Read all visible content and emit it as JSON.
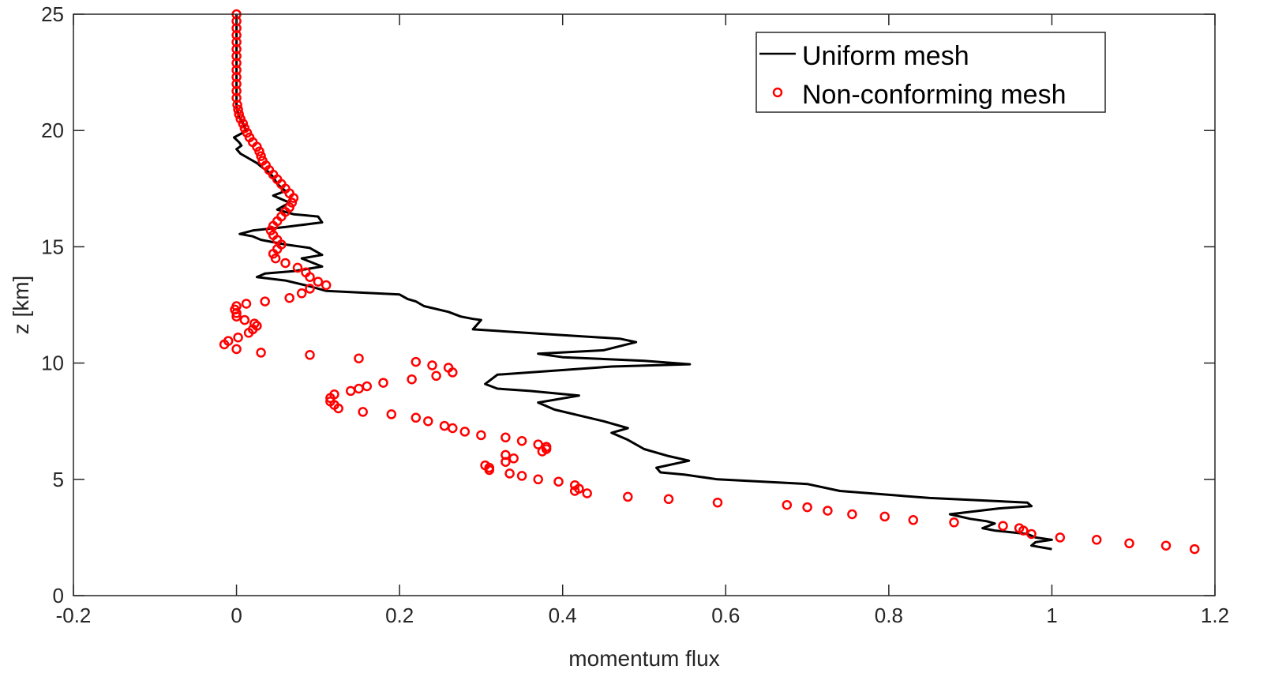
{
  "chart_data": {
    "type": "line",
    "title": "",
    "xlabel": "momentum flux",
    "ylabel": "z [km]",
    "xlim": [
      -0.2,
      1.2
    ],
    "ylim": [
      0,
      25
    ],
    "xticks": [
      -0.2,
      0,
      0.2,
      0.4,
      0.6,
      0.8,
      1,
      1.2
    ],
    "xtick_labels": [
      "-0.2",
      "0",
      "0.2",
      "0.4",
      "0.6",
      "0.8",
      "1",
      "1.2"
    ],
    "yticks": [
      0,
      5,
      10,
      15,
      20,
      25
    ],
    "ytick_labels": [
      "0",
      "5",
      "10",
      "15",
      "20",
      "25"
    ],
    "grid": false,
    "legend_position": "top-right",
    "colors": {
      "uniform": "#000000",
      "nonconforming": "#ff0000",
      "axes": "#262626"
    },
    "series": [
      {
        "name": "Uniform mesh",
        "style": "line",
        "color": "#000000",
        "points": [
          [
            0.0,
            25.0
          ],
          [
            0.0,
            23.0
          ],
          [
            0.0,
            22.0
          ],
          [
            0.0,
            21.0
          ],
          [
            0.003,
            20.6
          ],
          [
            0.008,
            20.3
          ],
          [
            0.012,
            20.0
          ],
          [
            0.005,
            19.85
          ],
          [
            -0.003,
            19.7
          ],
          [
            0.003,
            19.5
          ],
          [
            0.006,
            19.35
          ],
          [
            0.0,
            19.2
          ],
          [
            0.005,
            19.0
          ],
          [
            0.015,
            18.8
          ],
          [
            0.025,
            18.6
          ],
          [
            0.032,
            18.4
          ],
          [
            0.04,
            18.2
          ],
          [
            0.045,
            18.0
          ],
          [
            0.05,
            17.7
          ],
          [
            0.06,
            17.4
          ],
          [
            0.045,
            17.2
          ],
          [
            0.065,
            16.9
          ],
          [
            0.05,
            16.6
          ],
          [
            0.07,
            16.4
          ],
          [
            0.1,
            16.3
          ],
          [
            0.105,
            16.05
          ],
          [
            0.06,
            15.85
          ],
          [
            0.02,
            15.7
          ],
          [
            0.004,
            15.55
          ],
          [
            0.02,
            15.45
          ],
          [
            0.03,
            15.3
          ],
          [
            0.06,
            15.1
          ],
          [
            0.09,
            14.95
          ],
          [
            0.105,
            14.65
          ],
          [
            0.08,
            14.5
          ],
          [
            0.105,
            14.15
          ],
          [
            0.07,
            13.95
          ],
          [
            0.035,
            13.85
          ],
          [
            0.025,
            13.7
          ],
          [
            0.06,
            13.55
          ],
          [
            0.09,
            13.3
          ],
          [
            0.11,
            13.1
          ],
          [
            0.2,
            12.95
          ],
          [
            0.21,
            12.75
          ],
          [
            0.22,
            12.65
          ],
          [
            0.23,
            12.45
          ],
          [
            0.26,
            12.2
          ],
          [
            0.275,
            12.0
          ],
          [
            0.29,
            11.9
          ],
          [
            0.3,
            11.85
          ],
          [
            0.29,
            11.45
          ],
          [
            0.4,
            11.2
          ],
          [
            0.47,
            11.05
          ],
          [
            0.49,
            10.9
          ],
          [
            0.45,
            10.55
          ],
          [
            0.37,
            10.4
          ],
          [
            0.4,
            10.25
          ],
          [
            0.5,
            10.1
          ],
          [
            0.556,
            9.95
          ],
          [
            0.46,
            9.85
          ],
          [
            0.32,
            9.5
          ],
          [
            0.305,
            9.1
          ],
          [
            0.32,
            8.9
          ],
          [
            0.36,
            8.8
          ],
          [
            0.42,
            8.6
          ],
          [
            0.37,
            8.3
          ],
          [
            0.39,
            8.0
          ],
          [
            0.45,
            7.5
          ],
          [
            0.48,
            7.2
          ],
          [
            0.46,
            7.0
          ],
          [
            0.48,
            6.7
          ],
          [
            0.5,
            6.3
          ],
          [
            0.53,
            6.0
          ],
          [
            0.555,
            5.8
          ],
          [
            0.515,
            5.5
          ],
          [
            0.52,
            5.3
          ],
          [
            0.55,
            5.2
          ],
          [
            0.59,
            5.0
          ],
          [
            0.7,
            4.8
          ],
          [
            0.74,
            4.5
          ],
          [
            0.85,
            4.2
          ],
          [
            0.97,
            4.0
          ],
          [
            0.975,
            3.85
          ],
          [
            0.935,
            3.75
          ],
          [
            0.875,
            3.5
          ],
          [
            0.9,
            3.3
          ],
          [
            0.92,
            3.2
          ],
          [
            0.93,
            3.1
          ],
          [
            0.915,
            2.9
          ],
          [
            0.93,
            2.8
          ],
          [
            0.97,
            2.65
          ],
          [
            0.98,
            2.5
          ],
          [
            1.0,
            2.4
          ],
          [
            0.98,
            2.3
          ],
          [
            0.975,
            2.15
          ],
          [
            1.0,
            2.0
          ]
        ]
      },
      {
        "name": "Non-conforming mesh",
        "style": "markers",
        "marker": "circle",
        "color": "#ff0000",
        "points": [
          [
            0.0,
            25.0
          ],
          [
            0.0,
            24.7
          ],
          [
            0.0,
            24.4
          ],
          [
            0.0,
            24.1
          ],
          [
            0.0,
            23.8
          ],
          [
            0.0,
            23.5
          ],
          [
            0.0,
            23.2
          ],
          [
            0.0,
            22.9
          ],
          [
            0.0,
            22.6
          ],
          [
            0.0,
            22.3
          ],
          [
            0.0,
            22.0
          ],
          [
            0.0,
            21.7
          ],
          [
            0.0,
            21.4
          ],
          [
            0.001,
            21.1
          ],
          [
            0.002,
            20.9
          ],
          [
            0.003,
            20.7
          ],
          [
            0.005,
            20.5
          ],
          [
            0.008,
            20.3
          ],
          [
            0.01,
            20.1
          ],
          [
            0.013,
            19.9
          ],
          [
            0.016,
            19.7
          ],
          [
            0.02,
            19.5
          ],
          [
            0.025,
            19.3
          ],
          [
            0.028,
            19.1
          ],
          [
            0.03,
            18.9
          ],
          [
            0.032,
            18.7
          ],
          [
            0.036,
            18.5
          ],
          [
            0.04,
            18.3
          ],
          [
            0.045,
            18.1
          ],
          [
            0.05,
            17.9
          ],
          [
            0.055,
            17.7
          ],
          [
            0.06,
            17.5
          ],
          [
            0.065,
            17.3
          ],
          [
            0.07,
            17.1
          ],
          [
            0.068,
            16.9
          ],
          [
            0.065,
            16.7
          ],
          [
            0.06,
            16.5
          ],
          [
            0.055,
            16.3
          ],
          [
            0.05,
            16.1
          ],
          [
            0.045,
            15.9
          ],
          [
            0.042,
            15.7
          ],
          [
            0.045,
            15.5
          ],
          [
            0.05,
            15.3
          ],
          [
            0.055,
            15.1
          ],
          [
            0.05,
            14.9
          ],
          [
            0.045,
            14.7
          ],
          [
            0.048,
            14.5
          ],
          [
            0.06,
            14.3
          ],
          [
            0.075,
            14.1
          ],
          [
            0.085,
            13.9
          ],
          [
            0.09,
            13.7
          ],
          [
            0.1,
            13.5
          ],
          [
            0.11,
            13.35
          ],
          [
            0.09,
            13.2
          ],
          [
            0.08,
            13.0
          ],
          [
            0.065,
            12.8
          ],
          [
            0.035,
            12.65
          ],
          [
            0.012,
            12.55
          ],
          [
            0.0,
            12.45
          ],
          [
            -0.002,
            12.3
          ],
          [
            0.0,
            12.15
          ],
          [
            0.0,
            12.0
          ],
          [
            0.01,
            11.85
          ],
          [
            0.022,
            11.7
          ],
          [
            0.025,
            11.6
          ],
          [
            0.02,
            11.45
          ],
          [
            0.015,
            11.3
          ],
          [
            0.002,
            11.1
          ],
          [
            -0.01,
            10.95
          ],
          [
            -0.015,
            10.8
          ],
          [
            0.0,
            10.6
          ],
          [
            0.03,
            10.45
          ],
          [
            0.09,
            10.35
          ],
          [
            0.15,
            10.2
          ],
          [
            0.22,
            10.05
          ],
          [
            0.24,
            9.9
          ],
          [
            0.26,
            9.8
          ],
          [
            0.265,
            9.6
          ],
          [
            0.245,
            9.45
          ],
          [
            0.215,
            9.3
          ],
          [
            0.18,
            9.15
          ],
          [
            0.16,
            9.0
          ],
          [
            0.15,
            8.9
          ],
          [
            0.14,
            8.8
          ],
          [
            0.12,
            8.65
          ],
          [
            0.115,
            8.5
          ],
          [
            0.115,
            8.35
          ],
          [
            0.12,
            8.2
          ],
          [
            0.125,
            8.05
          ],
          [
            0.155,
            7.9
          ],
          [
            0.19,
            7.8
          ],
          [
            0.22,
            7.65
          ],
          [
            0.235,
            7.5
          ],
          [
            0.255,
            7.3
          ],
          [
            0.265,
            7.2
          ],
          [
            0.28,
            7.05
          ],
          [
            0.3,
            6.9
          ],
          [
            0.33,
            6.8
          ],
          [
            0.35,
            6.65
          ],
          [
            0.37,
            6.5
          ],
          [
            0.38,
            6.4
          ],
          [
            0.38,
            6.3
          ],
          [
            0.375,
            6.2
          ],
          [
            0.33,
            6.05
          ],
          [
            0.34,
            5.9
          ],
          [
            0.33,
            5.75
          ],
          [
            0.305,
            5.6
          ],
          [
            0.31,
            5.5
          ],
          [
            0.31,
            5.4
          ],
          [
            0.335,
            5.25
          ],
          [
            0.35,
            5.15
          ],
          [
            0.37,
            5.0
          ],
          [
            0.395,
            4.9
          ],
          [
            0.415,
            4.75
          ],
          [
            0.42,
            4.6
          ],
          [
            0.415,
            4.5
          ],
          [
            0.43,
            4.4
          ],
          [
            0.48,
            4.25
          ],
          [
            0.53,
            4.15
          ],
          [
            0.59,
            4.0
          ],
          [
            0.675,
            3.9
          ],
          [
            0.7,
            3.8
          ],
          [
            0.725,
            3.65
          ],
          [
            0.755,
            3.5
          ],
          [
            0.795,
            3.4
          ],
          [
            0.83,
            3.25
          ],
          [
            0.88,
            3.15
          ],
          [
            0.94,
            3.0
          ],
          [
            0.96,
            2.9
          ],
          [
            0.965,
            2.8
          ],
          [
            0.975,
            2.65
          ],
          [
            1.01,
            2.5
          ],
          [
            1.055,
            2.4
          ],
          [
            1.095,
            2.25
          ],
          [
            1.14,
            2.15
          ],
          [
            1.175,
            2.0
          ]
        ]
      }
    ]
  }
}
